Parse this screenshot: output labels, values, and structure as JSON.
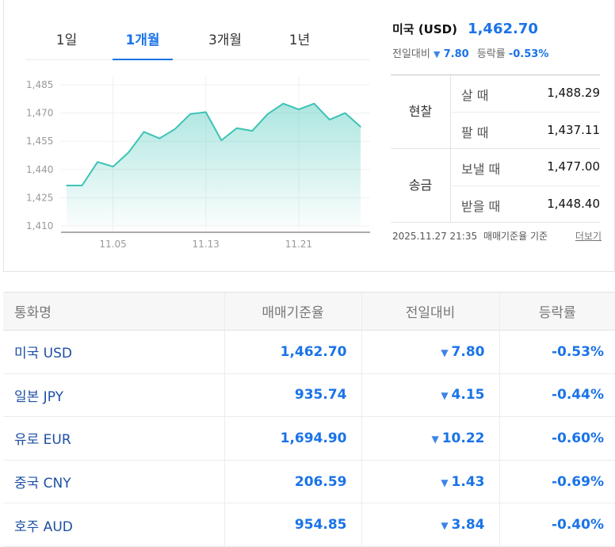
{
  "tabs": [
    {
      "label": "1일",
      "active": false
    },
    {
      "label": "1개월",
      "active": true
    },
    {
      "label": "3개월",
      "active": false
    },
    {
      "label": "1년",
      "active": false
    }
  ],
  "summary": {
    "currency": "미국 (USD)",
    "price": "1,462.70",
    "change_label": "전일대비",
    "change_value": "7.80",
    "rate_label": "등락률",
    "rate_value": "-0.53%",
    "direction": "down"
  },
  "quotes": [
    {
      "group": "현찰",
      "rows": [
        {
          "label": "살 때",
          "value": "1,488.29"
        },
        {
          "label": "팔 때",
          "value": "1,437.11"
        }
      ]
    },
    {
      "group": "송금",
      "rows": [
        {
          "label": "보낼 때",
          "value": "1,477.00"
        },
        {
          "label": "받을 때",
          "value": "1,448.40"
        }
      ]
    }
  ],
  "footnote": {
    "timestamp": "2025.11.27 21:35",
    "basis": "매매기준율 기준",
    "more": "더보기"
  },
  "chart_data": {
    "type": "area",
    "y_ticks": [
      "1,485",
      "1,470",
      "1,455",
      "1,440",
      "1,425",
      "1,410"
    ],
    "x_ticks": [
      "11.05",
      "11.13",
      "11.21"
    ],
    "ylim": [
      1410,
      1485
    ],
    "x": [
      0,
      1,
      2,
      3,
      4,
      5,
      6,
      7,
      8,
      9,
      10,
      11,
      12,
      13,
      14,
      15,
      16,
      17,
      18,
      19
    ],
    "x_tick_positions": [
      3,
      9,
      15
    ],
    "values": [
      1431.5,
      1431.5,
      1444,
      1441.5,
      1449,
      1460,
      1456.5,
      1461.5,
      1469.5,
      1470.5,
      1455.5,
      1462,
      1460.5,
      1469.5,
      1475,
      1472,
      1475,
      1466.5,
      1470,
      1462.7
    ],
    "line_color": "#3cc3b5",
    "fill_color": "#3cc3b5",
    "grid": true
  },
  "table": {
    "headers": [
      "통화명",
      "매매기준율",
      "전일대비",
      "등락률"
    ],
    "rows": [
      {
        "name": "미국 USD",
        "rate": "1,462.70",
        "change": "7.80",
        "pct": "-0.53%"
      },
      {
        "name": "일본 JPY",
        "rate": "935.74",
        "change": "4.15",
        "pct": "-0.44%"
      },
      {
        "name": "유로 EUR",
        "rate": "1,694.90",
        "change": "10.22",
        "pct": "-0.60%"
      },
      {
        "name": "중국 CNY",
        "rate": "206.59",
        "change": "1.43",
        "pct": "-0.69%"
      },
      {
        "name": "호주 AUD",
        "rate": "954.85",
        "change": "3.84",
        "pct": "-0.40%"
      }
    ]
  },
  "icons": {
    "down": "▼"
  },
  "colors": {
    "accent": "#1a73e8",
    "down": "#3d84e8"
  }
}
